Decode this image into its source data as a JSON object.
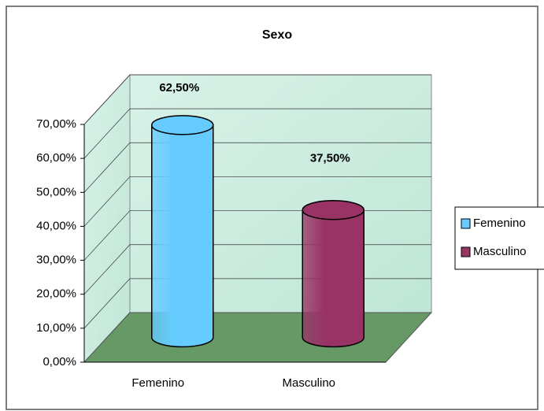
{
  "chart_data": {
    "type": "bar3d",
    "title": "Sexo",
    "categories": [
      "Femenino",
      "Masculino"
    ],
    "values": [
      62.5,
      37.5
    ],
    "value_labels": [
      "62,50%",
      "37,50%"
    ],
    "colors": [
      "#66ccff",
      "#993366"
    ],
    "ylim": [
      0,
      70
    ],
    "yticks": [
      {
        "value": 0,
        "label": "0,00%"
      },
      {
        "value": 10,
        "label": "10,00%"
      },
      {
        "value": 20,
        "label": "20,00%"
      },
      {
        "value": 30,
        "label": "30,00%"
      },
      {
        "value": 40,
        "label": "40,00%"
      },
      {
        "value": 50,
        "label": "50,00%"
      },
      {
        "value": 60,
        "label": "60,00%"
      },
      {
        "value": 70,
        "label": "70,00%"
      }
    ],
    "grid": true,
    "legend": "right"
  }
}
